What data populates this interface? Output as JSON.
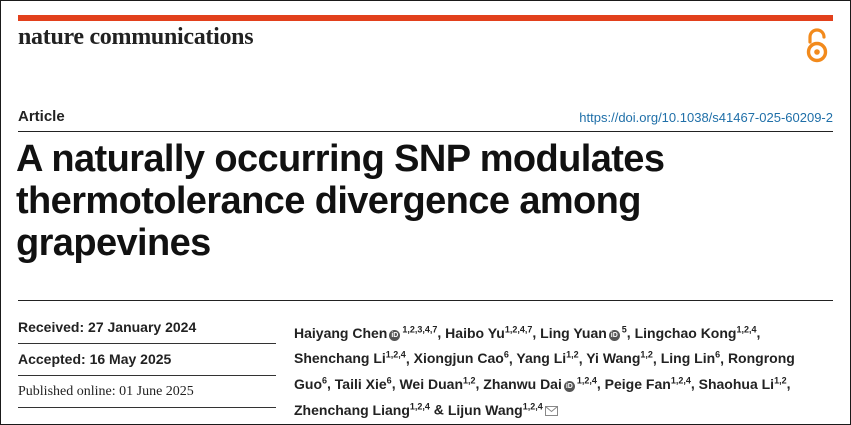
{
  "journal": "nature communications",
  "article_type": "Article",
  "doi": "https://doi.org/10.1038/s41467-025-60209-2",
  "title_lines": [
    "A naturally occurring SNP modulates",
    "thermotolerance divergence among",
    "grapevines"
  ],
  "dates": [
    {
      "label": "Received: ",
      "value": "27 January 2024"
    },
    {
      "label": "Accepted: ",
      "value": "16 May 2025"
    },
    {
      "label": "Published online: ",
      "value": "01 June 2025"
    }
  ],
  "authors": [
    {
      "name": "Haiyang Chen",
      "aff": "1,2,3,4,7",
      "orcid": true
    },
    {
      "name": "Haibo Yu",
      "aff": "1,2,4,7"
    },
    {
      "name": "Ling Yuan",
      "aff": "5",
      "orcid": true
    },
    {
      "name": "Lingchao Kong",
      "aff": "1,2,4"
    },
    {
      "name": "Shenchang Li",
      "aff": "1,2,4"
    },
    {
      "name": "Xiongjun Cao",
      "aff": "6"
    },
    {
      "name": "Yang Li",
      "aff": "1,2"
    },
    {
      "name": "Yi Wang",
      "aff": "1,2"
    },
    {
      "name": "Ling Lin",
      "aff": "6"
    },
    {
      "name": "Rongrong Guo",
      "aff": "6"
    },
    {
      "name": "Taili Xie",
      "aff": "6"
    },
    {
      "name": "Wei Duan",
      "aff": "1,2"
    },
    {
      "name": "Zhanwu Dai",
      "aff": "1,2,4",
      "orcid": true
    },
    {
      "name": "Peige Fan",
      "aff": "1,2,4"
    },
    {
      "name": "Shaohua Li",
      "aff": "1,2"
    },
    {
      "name": "Zhenchang Liang",
      "aff": "1,2,4"
    },
    {
      "name": "Lijun Wang",
      "aff": "1,2,4",
      "corresponding": true
    }
  ],
  "colors": {
    "accent": "#e2401c",
    "link": "#1f6fa8",
    "oa": "#f28a1c"
  },
  "icons": {
    "open_access": "open-access-icon",
    "orcid": "orcid-icon",
    "email": "email-icon"
  }
}
